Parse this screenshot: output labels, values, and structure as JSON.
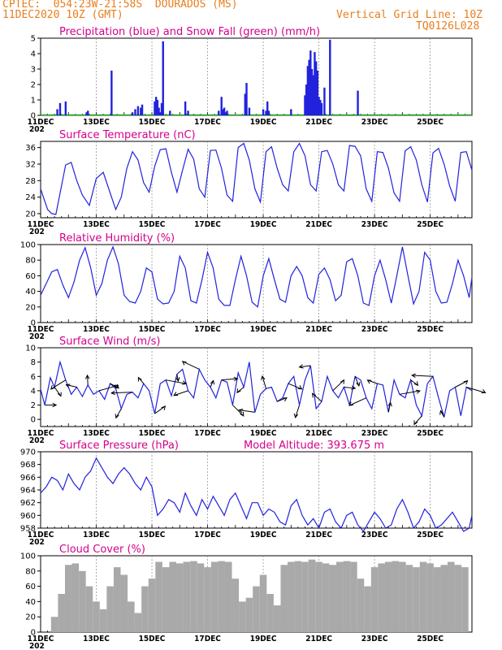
{
  "header": {
    "station": "CPTEC:  054:23W-21:58S  DOURADOS (MS)",
    "run": "11DEC2020 10Z (GMT)",
    "grid_note": "Vertical Grid Line: 10Z",
    "code": "TQ0126L028"
  },
  "colors": {
    "header": "#e87e1e",
    "title": "#d4008c",
    "line": "#2222dd",
    "snow": "#22aa22",
    "cloud": "#a9a9a9",
    "arrow": "#000000"
  },
  "x_labels": [
    "11DEC",
    "13DEC",
    "15DEC",
    "17DEC",
    "19DEC",
    "21DEC",
    "23DEC",
    "25DEC"
  ],
  "year_stub": "202",
  "chart_data": [
    {
      "id": "precip",
      "type": "bar",
      "title": "Precipitation (blue) and Snow Fall (green) (mm/h)",
      "ylim": [
        0,
        5
      ],
      "yticks": [
        0,
        1,
        2,
        3,
        4,
        5
      ],
      "series": [
        {
          "name": "Precipitation",
          "x": [
            0.6,
            0.7,
            0.9,
            1.65,
            1.7,
            2.55,
            3.3,
            3.4,
            3.5,
            3.6,
            3.65,
            4.1,
            4.15,
            4.2,
            4.25,
            4.3,
            4.35,
            4.4,
            4.65,
            5.2,
            5.3,
            6.4,
            6.5,
            6.55,
            6.6,
            6.65,
            6.7,
            7.35,
            7.4,
            7.5,
            8.0,
            8.1,
            8.15,
            8.2,
            9.0,
            9.5,
            9.55,
            9.6,
            9.65,
            9.7,
            9.75,
            9.8,
            9.85,
            9.9,
            9.95,
            10.0,
            10.05,
            10.1,
            10.2,
            10.4,
            11.4
          ],
          "values": [
            0.4,
            0.8,
            0.9,
            0.2,
            0.3,
            2.9,
            0.2,
            0.4,
            0.6,
            0.5,
            0.7,
            0.9,
            1.2,
            1.0,
            0.5,
            0.2,
            0.8,
            4.8,
            0.3,
            0.9,
            0.3,
            0.3,
            1.2,
            0.4,
            0.5,
            0.2,
            0.3,
            1.4,
            2.1,
            0.5,
            0.4,
            0.3,
            0.9,
            0.3,
            0.4,
            1.3,
            2.0,
            3.2,
            3.6,
            4.2,
            3.0,
            2.6,
            4.1,
            3.5,
            2.9,
            1.2,
            1.0,
            0.8,
            1.8,
            4.9,
            1.6
          ]
        },
        {
          "name": "Snow Fall",
          "x": [],
          "values": []
        }
      ]
    },
    {
      "id": "temp",
      "type": "line",
      "title": "Surface Temperature (nC)",
      "ylim": [
        19,
        37.5
      ],
      "yticks": [
        20,
        24,
        28,
        32,
        36
      ],
      "x": [
        0.0,
        0.1,
        0.25,
        0.4,
        0.55,
        0.7,
        0.9,
        1.1,
        1.3,
        1.5,
        1.75,
        2.0,
        2.25,
        2.5,
        2.7,
        2.9,
        3.1,
        3.3,
        3.5,
        3.7,
        3.9,
        4.1,
        4.3,
        4.5,
        4.7,
        4.9,
        5.1,
        5.3,
        5.5,
        5.7,
        5.9,
        6.1,
        6.3,
        6.5,
        6.7,
        6.9,
        7.1,
        7.3,
        7.5,
        7.7,
        7.9,
        8.1,
        8.3,
        8.5,
        8.7,
        8.9,
        9.1,
        9.3,
        9.5,
        9.7,
        9.9,
        10.1,
        10.3,
        10.5,
        10.7,
        10.9,
        11.1,
        11.3,
        11.5,
        11.7,
        11.9,
        12.1,
        12.3,
        12.5,
        12.7,
        12.9,
        13.1,
        13.3,
        13.5,
        13.7,
        13.9,
        14.1,
        14.3,
        14.5,
        14.7,
        14.9,
        15.1,
        15.3,
        15.5
      ],
      "values": [
        26,
        24,
        21,
        20,
        19.8,
        25,
        31.8,
        32.4,
        28,
        24.5,
        22,
        28.5,
        30,
        25,
        21,
        24,
        31,
        35,
        33,
        27.5,
        25.2,
        31.5,
        35.5,
        35.7,
        30,
        25.2,
        30.5,
        35.6,
        33.2,
        26,
        24,
        35.3,
        35.4,
        31,
        24.5,
        23,
        36,
        37,
        33,
        26,
        22.8,
        35,
        36.2,
        31,
        27,
        25.5,
        35,
        37,
        34,
        27,
        25.5,
        35,
        35.3,
        32,
        27,
        25.5,
        36.5,
        36.3,
        34,
        26,
        23,
        35,
        34.8,
        31,
        25,
        23,
        35.2,
        36.2,
        33,
        27,
        22.8,
        34.7,
        35.8,
        32,
        26.7,
        23,
        34.8,
        35,
        30.5
      ]
    },
    {
      "id": "rh",
      "type": "line",
      "title": "Relative Humidity (%)",
      "ylim": [
        0,
        100
      ],
      "yticks": [
        0,
        20,
        40,
        60,
        80,
        100
      ],
      "x": [
        0.0,
        0.2,
        0.4,
        0.6,
        0.8,
        1.0,
        1.2,
        1.4,
        1.6,
        1.8,
        2.0,
        2.2,
        2.4,
        2.6,
        2.8,
        3.0,
        3.2,
        3.4,
        3.6,
        3.8,
        4.0,
        4.2,
        4.4,
        4.6,
        4.8,
        5.0,
        5.2,
        5.4,
        5.6,
        5.8,
        6.0,
        6.2,
        6.4,
        6.6,
        6.8,
        7.0,
        7.2,
        7.4,
        7.6,
        7.8,
        8.0,
        8.2,
        8.4,
        8.6,
        8.8,
        9.0,
        9.2,
        9.4,
        9.6,
        9.8,
        10.0,
        10.2,
        10.4,
        10.6,
        10.8,
        11.0,
        11.2,
        11.4,
        11.6,
        11.8,
        12.0,
        12.2,
        12.4,
        12.6,
        12.8,
        13.0,
        13.2,
        13.4,
        13.6,
        13.8,
        14.0,
        14.2,
        14.4,
        14.6,
        14.8,
        15.0,
        15.2,
        15.4,
        15.5
      ],
      "values": [
        35,
        50,
        65,
        68,
        48,
        32,
        52,
        80,
        96,
        70,
        35,
        50,
        80,
        97,
        75,
        35,
        27,
        25,
        40,
        70,
        65,
        30,
        24,
        25,
        40,
        85,
        70,
        28,
        25,
        55,
        90,
        70,
        30,
        22,
        22,
        55,
        85,
        60,
        26,
        20,
        60,
        82,
        55,
        30,
        26,
        60,
        72,
        60,
        32,
        25,
        62,
        70,
        55,
        28,
        35,
        78,
        82,
        60,
        25,
        22,
        60,
        80,
        55,
        25,
        60,
        97,
        60,
        24,
        40,
        90,
        80,
        40,
        25,
        26,
        50,
        80,
        60,
        32,
        58
      ]
    },
    {
      "id": "wind",
      "type": "line",
      "title": "Surface Wind (m/s)",
      "ylim": [
        -1,
        10
      ],
      "yticks": [
        0,
        2,
        4,
        6,
        8,
        10
      ],
      "x": [
        0.0,
        0.15,
        0.35,
        0.5,
        0.7,
        0.9,
        1.1,
        1.3,
        1.5,
        1.7,
        1.9,
        2.1,
        2.3,
        2.5,
        2.7,
        2.9,
        3.1,
        3.3,
        3.5,
        3.7,
        3.9,
        4.1,
        4.3,
        4.5,
        4.7,
        4.9,
        5.1,
        5.3,
        5.5,
        5.7,
        5.9,
        6.1,
        6.3,
        6.5,
        6.7,
        6.9,
        7.1,
        7.3,
        7.5,
        7.7,
        7.9,
        8.1,
        8.3,
        8.5,
        8.7,
        8.9,
        9.1,
        9.3,
        9.5,
        9.7,
        9.9,
        10.1,
        10.3,
        10.5,
        10.7,
        10.9,
        11.1,
        11.3,
        11.5,
        11.7,
        11.9,
        12.1,
        12.3,
        12.5,
        12.7,
        12.9,
        13.1,
        13.3,
        13.5,
        13.7,
        13.9,
        14.1,
        14.3,
        14.5,
        14.7,
        14.9,
        15.1,
        15.3,
        15.5
      ],
      "values": [
        4.2,
        2.0,
        5.8,
        4.5,
        8.0,
        5.5,
        3.5,
        4.5,
        3.2,
        4.8,
        3.5,
        4.0,
        2.8,
        5.0,
        4.3,
        1.5,
        3.5,
        3.8,
        3.0,
        5.0,
        4.0,
        0.8,
        5.0,
        5.5,
        3.3,
        6.3,
        7.0,
        4.0,
        3.0,
        7.0,
        5.5,
        4.5,
        3.0,
        5.5,
        5.2,
        2.0,
        6.5,
        4.5,
        8.0,
        1.0,
        3.5,
        4.3,
        4.5,
        2.5,
        3.0,
        5.0,
        6.0,
        2.0,
        5.5,
        7.5,
        1.5,
        2.5,
        6.0,
        4.0,
        3.0,
        4.5,
        2.0,
        6.0,
        5.5,
        3.0,
        1.5,
        5.0,
        4.8,
        1.0,
        5.5,
        3.5,
        3.0,
        5.5,
        2.0,
        0.5,
        5.0,
        6.0,
        3.0,
        0.3,
        4.0,
        4.5,
        0.5,
        4.5,
        4.0
      ]
    },
    {
      "id": "pres",
      "type": "line",
      "title": "Surface Pressure (hPa)",
      "annotation": "Model Altitude: 393.675 m",
      "ylim": [
        958,
        970
      ],
      "yticks": [
        958,
        960,
        962,
        964,
        966,
        968,
        970
      ],
      "x": [
        0.0,
        0.2,
        0.4,
        0.6,
        0.8,
        1.0,
        1.2,
        1.4,
        1.6,
        1.8,
        2.0,
        2.2,
        2.4,
        2.6,
        2.8,
        3.0,
        3.2,
        3.4,
        3.6,
        3.8,
        4.0,
        4.2,
        4.4,
        4.6,
        4.8,
        5.0,
        5.2,
        5.4,
        5.6,
        5.8,
        6.0,
        6.2,
        6.4,
        6.6,
        6.8,
        7.0,
        7.2,
        7.4,
        7.6,
        7.8,
        8.0,
        8.2,
        8.4,
        8.6,
        8.8,
        9.0,
        9.2,
        9.4,
        9.6,
        9.8,
        10.0,
        10.2,
        10.4,
        10.6,
        10.8,
        11.0,
        11.2,
        11.4,
        11.6,
        11.8,
        12.0,
        12.2,
        12.4,
        12.6,
        12.8,
        13.0,
        13.2,
        13.4,
        13.6,
        13.8,
        14.0,
        14.2,
        14.4,
        14.6,
        14.8,
        15.0,
        15.2,
        15.4,
        15.5
      ],
      "values": [
        963.5,
        964.5,
        966.0,
        965.5,
        964.0,
        966.5,
        965.0,
        964.0,
        966.0,
        967.0,
        969.0,
        967.5,
        966.0,
        965.0,
        966.5,
        967.5,
        966.5,
        965.0,
        964.0,
        966.0,
        964.5,
        960.0,
        961.0,
        962.5,
        962.0,
        960.5,
        963.5,
        961.5,
        960.0,
        962.5,
        961.0,
        963.0,
        961.5,
        960.0,
        962.5,
        963.5,
        961.5,
        959.5,
        962.0,
        962.0,
        960.0,
        961.0,
        960.5,
        959.0,
        958.5,
        961.5,
        962.5,
        960.0,
        958.5,
        959.5,
        958.0,
        960.5,
        961.0,
        959.0,
        958.0,
        960.0,
        960.5,
        958.5,
        957.5,
        959.0,
        960.5,
        959.5,
        958.0,
        958.5,
        961.0,
        962.5,
        960.5,
        958.0,
        959.0,
        961.0,
        960.0,
        958.0,
        958.5,
        959.5,
        960.5,
        959.0,
        957.5,
        958.0,
        960.0
      ]
    },
    {
      "id": "cloud",
      "type": "bar",
      "title": "Cloud Cover (%)",
      "ylim": [
        0,
        100
      ],
      "yticks": [
        0,
        20,
        40,
        60,
        80,
        100
      ],
      "x": [
        0.5,
        0.75,
        1.0,
        1.25,
        1.5,
        1.75,
        2.0,
        2.25,
        2.5,
        2.75,
        3.0,
        3.25,
        3.5,
        3.75,
        4.0,
        4.25,
        4.5,
        4.75,
        5.0,
        5.25,
        5.5,
        5.75,
        6.0,
        6.25,
        6.5,
        6.75,
        7.0,
        7.25,
        7.5,
        7.75,
        8.0,
        8.25,
        8.5,
        8.75,
        9.0,
        9.25,
        9.5,
        9.75,
        10.0,
        10.25,
        10.5,
        10.75,
        11.0,
        11.25,
        11.5,
        11.75,
        12.0,
        12.25,
        12.5,
        12.75,
        13.0,
        13.25,
        13.5,
        13.75,
        14.0,
        14.25,
        14.5,
        14.75,
        15.0,
        15.25
      ],
      "values": [
        20,
        50,
        88,
        90,
        80,
        60,
        40,
        30,
        60,
        85,
        75,
        40,
        25,
        60,
        70,
        92,
        85,
        92,
        90,
        92,
        93,
        90,
        85,
        92,
        93,
        92,
        70,
        40,
        45,
        60,
        75,
        50,
        35,
        88,
        92,
        93,
        92,
        95,
        92,
        90,
        88,
        92,
        93,
        92,
        70,
        60,
        85,
        90,
        92,
        93,
        92,
        88,
        85,
        92,
        90,
        85,
        88,
        92,
        88,
        85
      ]
    }
  ]
}
